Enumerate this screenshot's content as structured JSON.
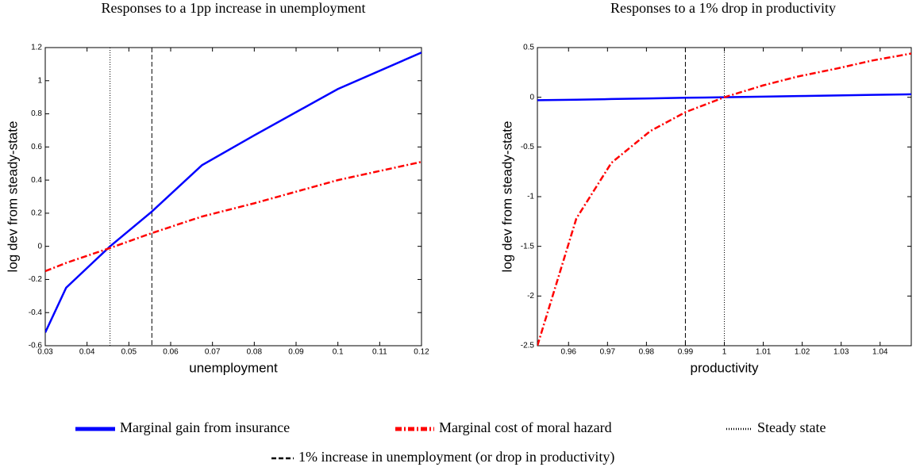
{
  "chart_data": [
    {
      "type": "line",
      "title": "Responses to a 1pp increase in unemployment",
      "x_label": "unemployment",
      "y_label": "log dev from steady-state",
      "x": [
        0.03,
        0.035,
        0.0455,
        0.0555,
        0.0675,
        0.08,
        0.1,
        0.12
      ],
      "series": [
        {
          "name": "Marginal gain from insurance",
          "color": "#0000ff",
          "style": "solid",
          "values": [
            -0.52,
            -0.25,
            0,
            0.21,
            0.49,
            0.67,
            0.95,
            1.17
          ]
        },
        {
          "name": "Marginal cost of moral hazard",
          "color": "#ff0000",
          "style": "dashdot",
          "values": [
            -0.15,
            -0.1,
            -0.01,
            0.08,
            0.18,
            0.26,
            0.4,
            0.51
          ]
        }
      ],
      "vlines": [
        {
          "name": "Steady state",
          "x": 0.0455,
          "style": "dotted"
        },
        {
          "name": "1% increase in unemployment (or drop in productivity)",
          "x": 0.0555,
          "style": "dashed"
        }
      ],
      "xlim": [
        0.03,
        0.12
      ],
      "xticks": [
        0.03,
        0.04,
        0.05,
        0.06,
        0.07,
        0.08,
        0.09,
        0.1,
        0.11,
        0.12
      ],
      "ylim": [
        -0.6,
        1.2
      ],
      "yticks": [
        -0.6,
        -0.4,
        -0.2,
        0,
        0.2,
        0.4,
        0.6,
        0.8,
        1,
        1.2
      ]
    },
    {
      "type": "line",
      "title": "Responses to a 1% drop in productivity",
      "x_label": "productivity",
      "y_label": "log dev from steady-state",
      "x": [
        0.952,
        0.962,
        0.971,
        0.981,
        0.99,
        1,
        1.01,
        1.019,
        1.029,
        1.038,
        1.048
      ],
      "series": [
        {
          "color": "#0000ff",
          "style": "solid",
          "values": [
            -0.03,
            -0.025,
            -0.018,
            -0.012,
            -0.005,
            0,
            0.006,
            0.012,
            0.018,
            0.024,
            0.03
          ]
        },
        {
          "color": "#ff0000",
          "style": "dashdot",
          "values": [
            -2.5,
            -1.22,
            -0.66,
            -0.34,
            -0.15,
            0,
            0.12,
            0.21,
            0.29,
            0.37,
            0.44
          ]
        }
      ],
      "vlines": [
        {
          "x": 0.99,
          "style": "dashed"
        },
        {
          "x": 1,
          "style": "dotted"
        }
      ],
      "xlim": [
        0.952,
        1.048
      ],
      "xticks": [
        0.96,
        0.97,
        0.98,
        0.99,
        1,
        1.01,
        1.02,
        1.03,
        1.04
      ],
      "ylim": [
        -2.5,
        0.5
      ],
      "yticks": [
        -2.5,
        -2,
        -1.5,
        -1,
        -0.5,
        0,
        0.5
      ]
    }
  ]
}
